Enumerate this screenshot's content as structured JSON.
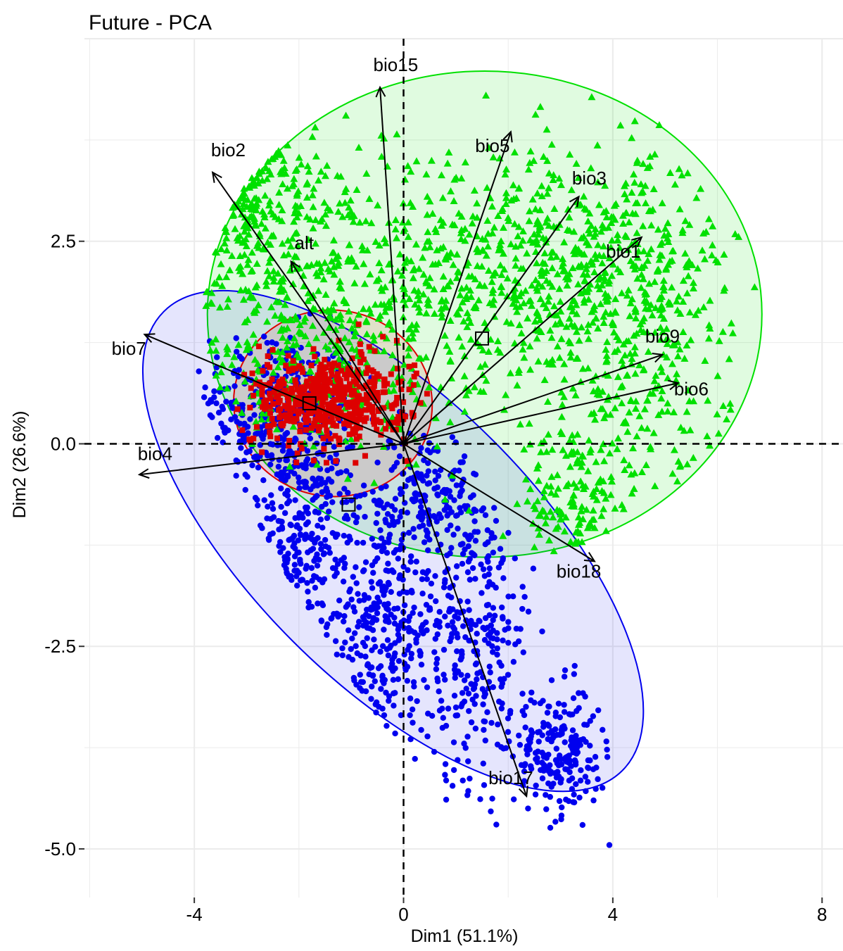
{
  "chart_data": {
    "type": "scatter",
    "title": "Future - PCA",
    "xlabel": "Dim1 (51.1%)",
    "ylabel": "Dim2 (26.6%)",
    "xlim": [
      -6.1,
      8.4
    ],
    "ylim": [
      -5.6,
      5.0
    ],
    "x_ticks": [
      {
        "value": -4,
        "label": "-4"
      },
      {
        "value": 0,
        "label": "0"
      },
      {
        "value": 4,
        "label": "4"
      },
      {
        "value": 8,
        "label": "8"
      }
    ],
    "y_ticks": [
      {
        "value": 2.5,
        "label": "2.5"
      },
      {
        "value": 0,
        "label": "0.0"
      },
      {
        "value": -2.5,
        "label": "-2.5"
      },
      {
        "value": -5,
        "label": "-5.0"
      }
    ],
    "grid": true,
    "reference_lines": {
      "x": 0,
      "y": 0,
      "style": "dashed"
    },
    "colors": {
      "green": "#00e000",
      "blue": "#0000ee",
      "red": "#dd0000",
      "arrow": "#000000"
    },
    "groups": [
      {
        "color": "#00e000",
        "marker": "triangle",
        "centroid": [
          1.5,
          1.3
        ],
        "ellipse": {
          "cx": 1.55,
          "cy": 1.6,
          "rx": 5.3,
          "ry": 3.0,
          "angle": 0
        },
        "clusters": [
          {
            "cx": -2.5,
            "cy": 2.5,
            "sx": 0.9,
            "sy": 0.8,
            "n": 280
          },
          {
            "cx": -3.2,
            "cy": 4.0,
            "sx": 0.35,
            "sy": 0.6,
            "n": 80
          },
          {
            "cx": 3.0,
            "cy": 2.2,
            "sx": 1.6,
            "sy": 0.7,
            "n": 600
          },
          {
            "cx": 4.5,
            "cy": 0.8,
            "sx": 0.9,
            "sy": 1.1,
            "n": 260
          },
          {
            "cx": 0.2,
            "cy": 1.6,
            "sx": 1.0,
            "sy": 0.8,
            "n": 250
          },
          {
            "cx": 3.2,
            "cy": -0.8,
            "sx": 0.5,
            "sy": 0.5,
            "n": 120
          },
          {
            "cx": -2.0,
            "cy": 1.0,
            "sx": 0.9,
            "sy": 0.5,
            "n": 160
          }
        ]
      },
      {
        "color": "#0000ee",
        "marker": "circle",
        "centroid": [
          -1.05,
          -0.75
        ],
        "ellipse": {
          "cx": -0.2,
          "cy": -1.2,
          "rx": 6.2,
          "ry": 1.75,
          "angle": -45
        },
        "clusters": [
          {
            "cx": -2.5,
            "cy": 0.4,
            "sx": 0.8,
            "sy": 0.5,
            "n": 320
          },
          {
            "cx": -2.0,
            "cy": -1.3,
            "sx": 0.5,
            "sy": 0.8,
            "n": 260
          },
          {
            "cx": -0.5,
            "cy": -2.2,
            "sx": 0.5,
            "sy": 0.9,
            "n": 280
          },
          {
            "cx": 1.3,
            "cy": -2.3,
            "sx": 0.6,
            "sy": 0.9,
            "n": 320
          },
          {
            "cx": 3.0,
            "cy": -3.8,
            "sx": 0.45,
            "sy": 0.4,
            "n": 220
          },
          {
            "cx": 0.5,
            "cy": -0.6,
            "sx": 0.5,
            "sy": 0.4,
            "n": 160
          }
        ]
      },
      {
        "color": "#dd0000",
        "marker": "square",
        "centroid": [
          -1.8,
          0.5
        ],
        "ellipse": {
          "cx": -1.35,
          "cy": 0.5,
          "rx": 1.9,
          "ry": 1.15,
          "angle": -8
        },
        "clusters": [
          {
            "cx": -1.4,
            "cy": 0.55,
            "sx": 0.75,
            "sy": 0.28,
            "n": 500
          }
        ]
      }
    ],
    "variables": [
      {
        "name": "bio15",
        "x": -0.45,
        "y": 4.4,
        "lx": -0.15,
        "ly": 4.6
      },
      {
        "name": "bio5",
        "x": 2.05,
        "y": 3.85,
        "lx": 1.7,
        "ly": 3.6
      },
      {
        "name": "bio2",
        "x": -3.65,
        "y": 3.35,
        "lx": -3.35,
        "ly": 3.55
      },
      {
        "name": "bio3",
        "x": 3.35,
        "y": 3.05,
        "lx": 3.55,
        "ly": 3.2
      },
      {
        "name": "alt",
        "x": -2.15,
        "y": 2.25,
        "lx": -1.9,
        "ly": 2.4
      },
      {
        "name": "bio1",
        "x": 4.55,
        "y": 2.55,
        "lx": 4.2,
        "ly": 2.3
      },
      {
        "name": "bio7",
        "x": -4.95,
        "y": 1.35,
        "lx": -5.25,
        "ly": 1.1
      },
      {
        "name": "bio9",
        "x": 4.95,
        "y": 1.1,
        "lx": 4.95,
        "ly": 1.25
      },
      {
        "name": "bio6",
        "x": 5.25,
        "y": 0.75,
        "lx": 5.5,
        "ly": 0.6
      },
      {
        "name": "bio4",
        "x": -5.05,
        "y": -0.38,
        "lx": -4.75,
        "ly": -0.2
      },
      {
        "name": "bio18",
        "x": 3.65,
        "y": -1.45,
        "lx": 3.35,
        "ly": -1.65
      },
      {
        "name": "bio17",
        "x": 2.35,
        "y": -4.35,
        "lx": 2.05,
        "ly": -4.2
      }
    ]
  }
}
